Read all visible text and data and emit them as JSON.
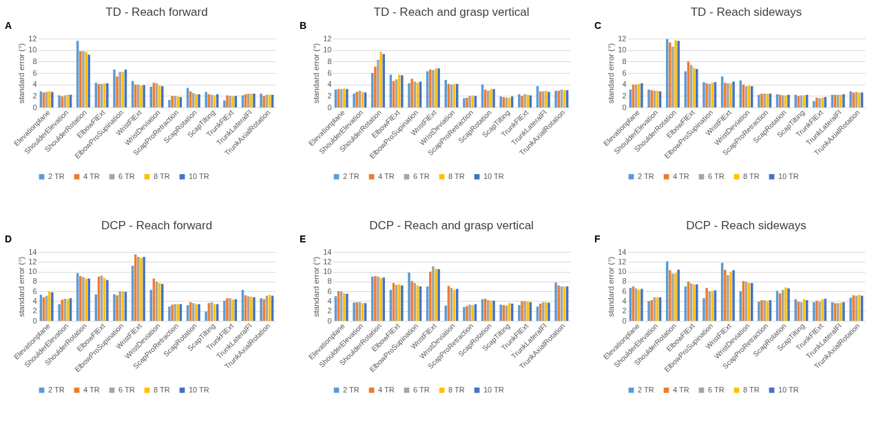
{
  "chart_data": [
    {
      "type": "bar",
      "title": "TD - Reach forward",
      "annotations": [
        "A"
      ],
      "ylabel": "standard error (°)",
      "ylim": [
        0,
        12
      ],
      "yticks": [
        0,
        2,
        4,
        6,
        8,
        10,
        12
      ],
      "grid": "y",
      "legend": "bottom",
      "categories": [
        "Elevationplane",
        "ShoulderElevation",
        "ShoulderRotation",
        "ElbowFlExt",
        "ElbowProSupination",
        "WristFlExt",
        "WristDeviation",
        "ScapProRetraction",
        "ScapRotation",
        "ScapTilting",
        "TrunkFlExt",
        "TrunkLateralFl",
        "TrunkAxialRotation"
      ],
      "series": [
        {
          "name": "2 TR",
          "color": "#5b9bd5",
          "values": [
            2.8,
            2.1,
            11.6,
            4.3,
            6.6,
            4.6,
            3.6,
            1.3,
            3.4,
            2.7,
            1.2,
            2.1,
            2.4
          ]
        },
        {
          "name": "4 TR",
          "color": "#ed7d31",
          "values": [
            2.6,
            1.9,
            9.8,
            4.1,
            5.4,
            4.0,
            4.3,
            2.0,
            2.8,
            2.3,
            2.1,
            2.3,
            2.0
          ]
        },
        {
          "name": "6 TR",
          "color": "#a5a5a5",
          "values": [
            2.7,
            2.1,
            9.8,
            4.1,
            6.2,
            4.0,
            4.2,
            2.0,
            2.5,
            2.2,
            2.0,
            2.4,
            2.2
          ]
        },
        {
          "name": "8 TR",
          "color": "#ffc000",
          "values": [
            2.8,
            2.2,
            9.7,
            4.2,
            6.2,
            3.8,
            3.8,
            1.9,
            2.3,
            2.1,
            2.0,
            2.4,
            2.2
          ]
        },
        {
          "name": "10 TR",
          "color": "#4472c4",
          "values": [
            2.7,
            2.2,
            9.2,
            4.2,
            6.6,
            3.9,
            3.7,
            1.8,
            2.3,
            2.3,
            2.0,
            2.4,
            2.2
          ]
        }
      ]
    },
    {
      "type": "bar",
      "title": "TD - Reach and grasp vertical",
      "annotations": [
        "B"
      ],
      "ylabel": "standard error (°)",
      "ylim": [
        0,
        12
      ],
      "yticks": [
        0,
        2,
        4,
        6,
        8,
        10,
        12
      ],
      "grid": "y",
      "legend": "bottom",
      "categories": [
        "Elevationplane",
        "ShoulderElevation",
        "ShoulderRotation",
        "ElbowFlExt",
        "ElbowProSupination",
        "WristFlExt",
        "WristDeviation",
        "ScapProRetraction",
        "ScapRotation",
        "ScapTilting",
        "TrunkFlExt",
        "TrunkLateralFl",
        "TrunkAxialRotation"
      ],
      "series": [
        {
          "name": "2 TR",
          "color": "#5b9bd5",
          "values": [
            3.1,
            2.4,
            6.0,
            5.7,
            4.2,
            6.3,
            4.8,
            1.6,
            4.0,
            1.9,
            2.3,
            3.7,
            2.9
          ]
        },
        {
          "name": "4 TR",
          "color": "#ed7d31",
          "values": [
            3.2,
            2.7,
            7.1,
            4.6,
            5.0,
            6.6,
            4.1,
            1.7,
            3.1,
            1.8,
            2.0,
            2.8,
            2.9
          ]
        },
        {
          "name": "6 TR",
          "color": "#a5a5a5",
          "values": [
            3.2,
            2.9,
            8.3,
            4.9,
            4.5,
            6.5,
            4.0,
            2.0,
            2.9,
            1.7,
            2.3,
            2.8,
            3.1
          ]
        },
        {
          "name": "8 TR",
          "color": "#ffc000",
          "values": [
            3.3,
            2.7,
            9.7,
            5.7,
            4.3,
            6.8,
            4.1,
            2.1,
            3.2,
            1.7,
            2.2,
            2.9,
            3.0
          ]
        },
        {
          "name": "10 TR",
          "color": "#4472c4",
          "values": [
            3.2,
            2.6,
            9.3,
            5.6,
            4.5,
            6.8,
            4.1,
            2.0,
            3.2,
            1.9,
            2.1,
            2.7,
            3.0
          ]
        }
      ]
    },
    {
      "type": "bar",
      "title": "TD - Reach sideways",
      "annotations": [
        "C"
      ],
      "ylabel": "standard error (°)",
      "ylim": [
        0,
        12
      ],
      "yticks": [
        0,
        2,
        4,
        6,
        8,
        10,
        12
      ],
      "grid": "y",
      "legend": "bottom",
      "categories": [
        "Elevationplane",
        "ShoulderElevation",
        "ShoulderRotation",
        "ElbowFlExt",
        "ElbowProSupination",
        "WristFlExt",
        "WristDeviation",
        "ScapProRetraction",
        "ScapRotation",
        "ScapTilting",
        "TrunkFlExt",
        "TrunkLateralFl",
        "TrunkAxialRotation"
      ],
      "series": [
        {
          "name": "2 TR",
          "color": "#5b9bd5",
          "values": [
            3.1,
            3.1,
            11.9,
            6.3,
            4.4,
            5.4,
            4.7,
            2.2,
            2.3,
            2.2,
            1.1,
            2.2,
            2.8
          ]
        },
        {
          "name": "4 TR",
          "color": "#ed7d31",
          "values": [
            4.0,
            3.0,
            11.3,
            8.0,
            4.2,
            4.3,
            4.0,
            2.4,
            2.2,
            2.0,
            1.7,
            2.2,
            2.6
          ]
        },
        {
          "name": "6 TR",
          "color": "#a5a5a5",
          "values": [
            4.0,
            2.9,
            10.6,
            7.4,
            4.1,
            4.2,
            3.7,
            2.4,
            2.1,
            2.1,
            1.6,
            2.2,
            2.7
          ]
        },
        {
          "name": "8 TR",
          "color": "#ffc000",
          "values": [
            4.1,
            2.9,
            11.7,
            6.9,
            4.3,
            4.2,
            3.8,
            2.4,
            2.1,
            2.1,
            1.7,
            2.2,
            2.6
          ]
        },
        {
          "name": "10 TR",
          "color": "#4472c4",
          "values": [
            4.2,
            2.8,
            11.6,
            6.7,
            4.4,
            4.5,
            3.7,
            2.4,
            2.2,
            2.2,
            1.8,
            2.3,
            2.6
          ]
        }
      ]
    },
    {
      "type": "bar",
      "title": "DCP - Reach forward",
      "annotations": [
        "D"
      ],
      "ylabel": "standard error (°)",
      "ylim": [
        0,
        14
      ],
      "yticks": [
        0,
        2,
        4,
        6,
        8,
        10,
        12,
        14
      ],
      "grid": "y",
      "legend": "bottom",
      "categories": [
        "Elevationplane",
        "ShoulderElevation",
        "ShoulderRotation",
        "ElbowFlExt",
        "ElbowProSupination",
        "WristFlExt",
        "WristDeviation",
        "ScapProRetraction",
        "ScapRotation",
        "ScapTilting",
        "TrunkFlExt",
        "TrunkLateralFl",
        "TrunkAxialRotation"
      ],
      "series": [
        {
          "name": "2 TR",
          "color": "#5b9bd5",
          "values": [
            5.3,
            3.4,
            9.7,
            5.4,
            5.4,
            11.2,
            6.3,
            2.9,
            3.2,
            1.9,
            4.1,
            6.3,
            4.6
          ]
        },
        {
          "name": "4 TR",
          "color": "#ed7d31",
          "values": [
            4.8,
            4.3,
            9.1,
            9.0,
            5.2,
            13.5,
            8.6,
            3.3,
            3.8,
            3.6,
            4.6,
            5.2,
            4.4
          ]
        },
        {
          "name": "6 TR",
          "color": "#a5a5a5",
          "values": [
            5.1,
            4.5,
            8.9,
            9.2,
            6.0,
            13.0,
            8.0,
            3.4,
            3.6,
            3.8,
            4.6,
            5.0,
            5.1
          ]
        },
        {
          "name": "8 TR",
          "color": "#ffc000",
          "values": [
            6.0,
            4.4,
            8.6,
            8.7,
            6.0,
            12.8,
            7.7,
            3.4,
            3.4,
            3.4,
            4.3,
            4.9,
            5.3
          ]
        },
        {
          "name": "10 TR",
          "color": "#4472c4",
          "values": [
            5.8,
            4.6,
            8.6,
            8.3,
            5.9,
            13.0,
            7.5,
            3.4,
            3.4,
            3.4,
            4.4,
            4.8,
            5.1
          ]
        }
      ]
    },
    {
      "type": "bar",
      "title": "DCP - Reach and grasp vertical",
      "annotations": [
        "E"
      ],
      "ylabel": "standard error (°)",
      "ylim": [
        0,
        14
      ],
      "yticks": [
        0,
        2,
        4,
        6,
        8,
        10,
        12,
        14
      ],
      "grid": "y",
      "legend": "bottom",
      "categories": [
        "Elevationplane",
        "ShoulderElevation",
        "ShoulderRotation",
        "ElbowFlExt",
        "ElbowProSupination",
        "WristFlExt",
        "WristDeviation",
        "ScapProRetraction",
        "ScapRotation",
        "ScapTilting",
        "TrunkFlExt",
        "TrunkLateralFl",
        "TrunkAxialRotation"
      ],
      "series": [
        {
          "name": "2 TR",
          "color": "#5b9bd5",
          "values": [
            5.0,
            3.7,
            9.0,
            6.3,
            9.8,
            7.0,
            3.1,
            2.8,
            4.4,
            3.3,
            3.2,
            2.9,
            7.8
          ]
        },
        {
          "name": "4 TR",
          "color": "#ed7d31",
          "values": [
            6.0,
            3.8,
            9.1,
            7.7,
            8.1,
            10.0,
            7.1,
            3.0,
            4.5,
            3.2,
            4.0,
            3.5,
            7.2
          ]
        },
        {
          "name": "6 TR",
          "color": "#a5a5a5",
          "values": [
            6.0,
            3.8,
            9.0,
            7.3,
            7.7,
            11.1,
            6.7,
            3.3,
            4.2,
            3.1,
            4.0,
            3.8,
            7.0
          ]
        },
        {
          "name": "8 TR",
          "color": "#ffc000",
          "values": [
            5.6,
            3.6,
            8.7,
            7.4,
            7.2,
            10.6,
            6.3,
            3.2,
            4.1,
            3.6,
            3.9,
            3.8,
            7.0
          ]
        },
        {
          "name": "10 TR",
          "color": "#4472c4",
          "values": [
            5.5,
            3.6,
            8.8,
            7.2,
            7.0,
            10.5,
            6.5,
            3.4,
            4.1,
            3.5,
            3.8,
            3.7,
            7.0
          ]
        }
      ]
    },
    {
      "type": "bar",
      "title": "DCP - Reach sideways",
      "annotations": [
        "F"
      ],
      "ylabel": "standard error (°)",
      "ylim": [
        0,
        14
      ],
      "yticks": [
        0,
        2,
        4,
        6,
        8,
        10,
        12,
        14
      ],
      "grid": "y",
      "legend": "bottom",
      "categories": [
        "Elevationplane",
        "ShoulderElevation",
        "ShoulderRotation",
        "ElbowFlExt",
        "ElbowProSupination",
        "WristFlExt",
        "WristDeviation",
        "ScapProRetraction",
        "ScapRotation",
        "ScapTilting",
        "TrunkFlExt",
        "TrunkLateralFl",
        "TrunkAxialRotation"
      ],
      "series": [
        {
          "name": "2 TR",
          "color": "#5b9bd5",
          "values": [
            6.7,
            4.0,
            12.1,
            7.0,
            4.6,
            11.8,
            6.0,
            3.9,
            6.1,
            4.4,
            3.8,
            3.8,
            4.7
          ]
        },
        {
          "name": "4 TR",
          "color": "#ed7d31",
          "values": [
            7.0,
            4.2,
            10.3,
            8.0,
            6.7,
            10.4,
            8.1,
            4.2,
            5.6,
            3.9,
            4.1,
            3.6,
            5.2
          ]
        },
        {
          "name": "6 TR",
          "color": "#a5a5a5",
          "values": [
            6.6,
            4.8,
            9.6,
            7.6,
            6.0,
            9.3,
            8.0,
            4.2,
            6.3,
            3.8,
            3.9,
            3.6,
            5.1
          ]
        },
        {
          "name": "8 TR",
          "color": "#ffc000",
          "values": [
            6.3,
            4.8,
            9.7,
            7.4,
            6.1,
            10.0,
            7.7,
            4.0,
            6.8,
            4.4,
            4.4,
            3.7,
            5.3
          ]
        },
        {
          "name": "10 TR",
          "color": "#4472c4",
          "values": [
            6.5,
            4.8,
            10.4,
            7.4,
            6.2,
            10.3,
            7.7,
            4.2,
            6.6,
            4.2,
            4.5,
            3.8,
            5.1
          ]
        }
      ]
    }
  ]
}
